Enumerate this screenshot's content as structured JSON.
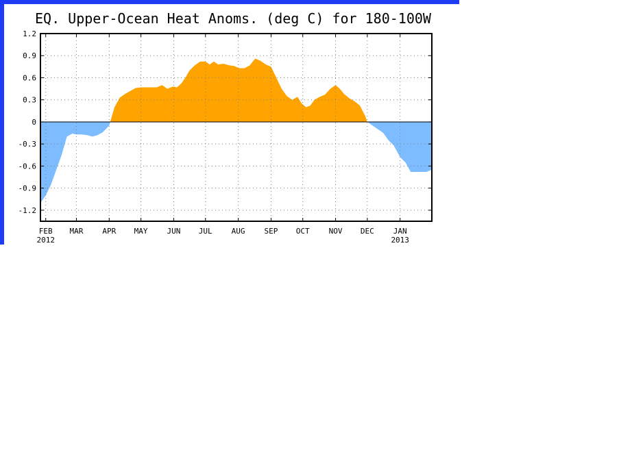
{
  "colors": {
    "frame": "#1f3cf5",
    "positive_fill": "#ffa300",
    "negative_fill": "#7dbcff",
    "axis": "#000000",
    "grid": "#7f7f7f"
  },
  "chart_data": {
    "type": "area",
    "title": "EQ. Upper-Ocean Heat Anoms. (deg C) for 180-100W",
    "xlabel": "",
    "ylabel": "",
    "ylim": [
      -1.35,
      1.2
    ],
    "xlim": [
      "2012-01-27",
      "2013-01-31"
    ],
    "yticks": [
      1.2,
      0.9,
      0.6,
      0.3,
      0,
      -0.3,
      -0.6,
      -0.9,
      -1.2
    ],
    "ytick_labels": [
      "1.2",
      "0.9",
      "0.6",
      "0.3",
      "0",
      "-0.3",
      "-0.6",
      "-0.9",
      "-1.2"
    ],
    "xticks": [
      {
        "date": "2012-02-01",
        "label": "FEB",
        "year": "2012"
      },
      {
        "date": "2012-03-01",
        "label": "MAR",
        "year": ""
      },
      {
        "date": "2012-04-01",
        "label": "APR",
        "year": ""
      },
      {
        "date": "2012-05-01",
        "label": "MAY",
        "year": ""
      },
      {
        "date": "2012-06-01",
        "label": "JUN",
        "year": ""
      },
      {
        "date": "2012-07-01",
        "label": "JUL",
        "year": ""
      },
      {
        "date": "2012-08-01",
        "label": "AUG",
        "year": ""
      },
      {
        "date": "2012-09-01",
        "label": "SEP",
        "year": ""
      },
      {
        "date": "2012-10-01",
        "label": "OCT",
        "year": ""
      },
      {
        "date": "2012-11-01",
        "label": "NOV",
        "year": ""
      },
      {
        "date": "2012-12-01",
        "label": "DEC",
        "year": ""
      },
      {
        "date": "2013-01-01",
        "label": "JAN",
        "year": "2013"
      }
    ],
    "grid": true,
    "series": [
      {
        "x": [
          "2012-01-27",
          "2012-02-01",
          "2012-02-06",
          "2012-02-11",
          "2012-02-16",
          "2012-02-21",
          "2012-02-26",
          "2012-03-01",
          "2012-03-06",
          "2012-03-11",
          "2012-03-16",
          "2012-03-21",
          "2012-03-26",
          "2012-04-01",
          "2012-04-06",
          "2012-04-11",
          "2012-04-16",
          "2012-04-21",
          "2012-04-26",
          "2012-05-01",
          "2012-05-06",
          "2012-05-11",
          "2012-05-16",
          "2012-05-21",
          "2012-05-26",
          "2012-05-31",
          "2012-06-04",
          "2012-06-08",
          "2012-06-12",
          "2012-06-16",
          "2012-06-21",
          "2012-06-26",
          "2012-07-01",
          "2012-07-05",
          "2012-07-09",
          "2012-07-13",
          "2012-07-18",
          "2012-07-23",
          "2012-07-28",
          "2012-08-02",
          "2012-08-07",
          "2012-08-12",
          "2012-08-17",
          "2012-08-22",
          "2012-08-27",
          "2012-09-01",
          "2012-09-06",
          "2012-09-11",
          "2012-09-16",
          "2012-09-21",
          "2012-09-26",
          "2012-09-30",
          "2012-10-04",
          "2012-10-08",
          "2012-10-12",
          "2012-10-17",
          "2012-10-22",
          "2012-10-27",
          "2012-11-01",
          "2012-11-05",
          "2012-11-09",
          "2012-11-14",
          "2012-11-19",
          "2012-11-24",
          "2012-11-29",
          "2012-12-01",
          "2012-12-06",
          "2012-12-11",
          "2012-12-16",
          "2012-12-21",
          "2012-12-26",
          "2013-01-01",
          "2013-01-06",
          "2013-01-11",
          "2013-01-16",
          "2013-01-21",
          "2013-01-26",
          "2013-01-31"
        ],
        "y": [
          -1.1,
          -1.0,
          -0.85,
          -0.65,
          -0.45,
          -0.2,
          -0.16,
          -0.17,
          -0.17,
          -0.18,
          -0.2,
          -0.18,
          -0.14,
          -0.05,
          0.2,
          0.33,
          0.38,
          0.42,
          0.46,
          0.47,
          0.47,
          0.47,
          0.47,
          0.5,
          0.45,
          0.48,
          0.47,
          0.52,
          0.6,
          0.7,
          0.77,
          0.82,
          0.82,
          0.78,
          0.82,
          0.78,
          0.79,
          0.77,
          0.76,
          0.73,
          0.73,
          0.77,
          0.86,
          0.83,
          0.78,
          0.75,
          0.6,
          0.45,
          0.35,
          0.3,
          0.34,
          0.25,
          0.2,
          0.22,
          0.3,
          0.34,
          0.37,
          0.45,
          0.5,
          0.45,
          0.38,
          0.32,
          0.28,
          0.22,
          0.08,
          0.0,
          -0.05,
          -0.1,
          -0.15,
          -0.25,
          -0.32,
          -0.48,
          -0.55,
          -0.68,
          -0.68,
          -0.68,
          -0.68,
          -0.65
        ]
      }
    ]
  }
}
